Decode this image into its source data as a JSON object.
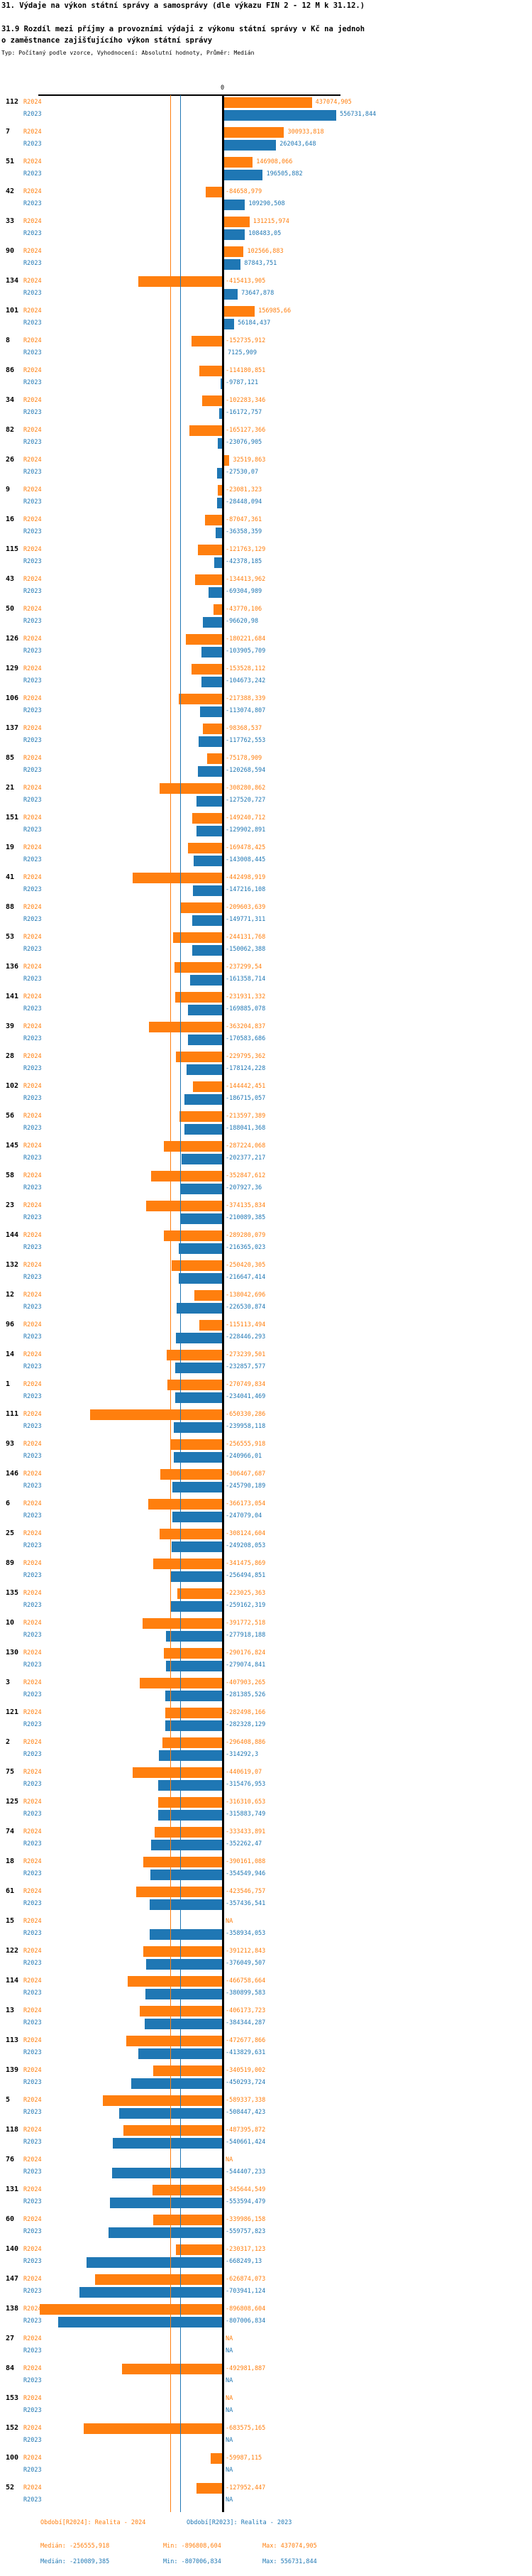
{
  "title": "31. Výdaje na výkon státní správy a samosprávy (dle výkazu FIN 2 - 12 M k 31.12.)",
  "subtitle_line1": "31.9 Rozdíl mezi příjmy a provozními výdaji z výkonu státní správy v Kč na jednoh",
  "subtitle_line2": "o zaměstnance zajišťujícího výkon státní správy",
  "meta": "Typ: Počítaný podle vzorce, Vyhodnocení: Absolutní hodnoty, Průměr: Medián",
  "na_label": "NA",
  "axis": {
    "zero_label": "0"
  },
  "colors": {
    "r2024": "#ff7f0e",
    "r2023": "#1f77b4",
    "axis": "#000000"
  },
  "footer": {
    "legend_r2024": "Období[R2024]: Realita - 2024",
    "legend_r2023": "Období[R2023]: Realita - 2023",
    "r2024": {
      "median": "Medián: -256555,918",
      "min": "Min: -896808,604",
      "max": "Max: 437074,905"
    },
    "r2023": {
      "median": "Medián: -210089,385",
      "min": "Min: -807006,834",
      "max": "Max: 556731,844"
    }
  },
  "chart_data": {
    "type": "bar",
    "orientation": "horizontal",
    "title": "31.9 Rozdíl mezi příjmy a provozními výdaji z výkonu státní správy v Kč na jednoho zaměstnance zajišťujícího výkon státní správy",
    "xlim": [
      -896808.604,
      556731.844
    ],
    "grid": false,
    "legend_position": "bottom",
    "categories": [
      "112",
      "7",
      "51",
      "42",
      "33",
      "90",
      "134",
      "101",
      "8",
      "86",
      "34",
      "82",
      "26",
      "9",
      "16",
      "115",
      "43",
      "50",
      "126",
      "129",
      "106",
      "137",
      "85",
      "21",
      "151",
      "19",
      "41",
      "88",
      "53",
      "136",
      "141",
      "39",
      "28",
      "102",
      "56",
      "145",
      "58",
      "23",
      "144",
      "132",
      "12",
      "96",
      "14",
      "1",
      "111",
      "93",
      "146",
      "6",
      "25",
      "89",
      "135",
      "10",
      "130",
      "3",
      "121",
      "2",
      "75",
      "125",
      "74",
      "18",
      "61",
      "15",
      "122",
      "114",
      "13",
      "113",
      "139",
      "5",
      "118",
      "76",
      "131",
      "60",
      "140",
      "147",
      "138",
      "27",
      "84",
      "153",
      "152",
      "100",
      "52"
    ],
    "series": [
      {
        "name": "R2024",
        "color": "#ff7f0e",
        "values": [
          437074.905,
          300933.818,
          146908.066,
          -84658.979,
          131215.974,
          102566.883,
          -415413.905,
          156985.66,
          -152735.912,
          -114180.851,
          -102283.346,
          -165127.366,
          32519.863,
          -23081.323,
          -87047.361,
          -121763.129,
          -134413.962,
          -43770.106,
          -180221.684,
          -153528.112,
          -217388.339,
          -98368.537,
          -75178.909,
          -308280.862,
          -149240.712,
          -169478.425,
          -442498.919,
          -209603.639,
          -244131.768,
          -237299.54,
          -231931.332,
          -363204.837,
          -229795.362,
          -144442.451,
          -213597.389,
          -287224.068,
          -352847.612,
          -374135.834,
          -289280.079,
          -250420.305,
          -138042.696,
          -115113.494,
          -273239.501,
          -270749.834,
          -650330.286,
          -256555.918,
          -306467.687,
          -366173.054,
          -308124.604,
          -341475.869,
          -223025.363,
          -391772.518,
          -290176.824,
          -407903.265,
          -282498.166,
          -296408.886,
          -440619.07,
          -316310.653,
          -333433.891,
          -390161.088,
          -423546.757,
          null,
          -391212.843,
          -466758.664,
          -406173.723,
          -472677.866,
          -340519.002,
          -589337.338,
          -487395.872,
          null,
          -345644.549,
          -339986.158,
          -230317.123,
          -626874.073,
          -896808.604,
          null,
          -492981.887,
          null,
          -683575.165,
          -59987.115,
          -127952.447
        ]
      },
      {
        "name": "R2023",
        "color": "#1f77b4",
        "values": [
          556731.844,
          262043.648,
          196505.882,
          109290.508,
          108483.05,
          87843.751,
          73647.878,
          56184.437,
          7125.909,
          -9787.121,
          -16172.757,
          -23076.905,
          -27530.07,
          -28448.094,
          -36358.359,
          -42378.185,
          -69304.989,
          -96620.98,
          -103905.709,
          -104673.242,
          -113074.807,
          -117762.553,
          -120268.594,
          -127520.727,
          -129902.891,
          -143008.445,
          -147216.108,
          -149771.311,
          -150062.388,
          -161358.714,
          -169885.078,
          -170583.686,
          -178124.228,
          -186715.057,
          -188041.368,
          -202377.217,
          -207927.36,
          -210089.385,
          -216365.023,
          -216647.414,
          -226530.874,
          -228446.293,
          -232857.577,
          -234041.469,
          -239958.118,
          -240966.01,
          -245790.189,
          -247079.04,
          -249208.053,
          -256494.851,
          -259162.319,
          -277918.188,
          -279074.841,
          -281385.526,
          -282328.129,
          -314292.3,
          -315476.953,
          -315883.749,
          -352262.47,
          -354549.946,
          -357436.541,
          -358934.053,
          -376049.507,
          -380899.583,
          -384344.287,
          -413829.631,
          -450293.724,
          -508447.423,
          -540661.424,
          -544407.233,
          -553594.479,
          -559757.823,
          -668249.13,
          -703941.124,
          -807006.834,
          null,
          null,
          null,
          null,
          null,
          null
        ]
      }
    ],
    "stats": {
      "r2024": {
        "median": -256555.918,
        "min": -896808.604,
        "max": 437074.905
      },
      "r2023": {
        "median": -210089.385,
        "min": -807006.834,
        "max": 556731.844
      }
    }
  }
}
